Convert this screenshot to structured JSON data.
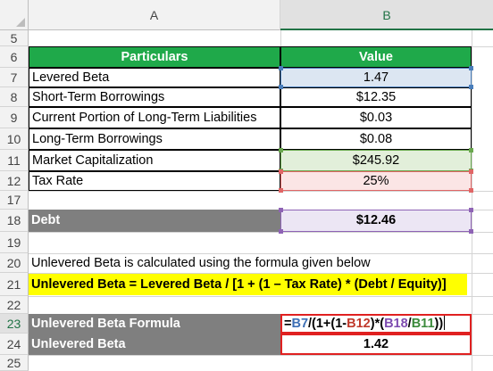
{
  "columns": {
    "a": "A",
    "b": "B"
  },
  "row_numbers": [
    "5",
    "6",
    "7",
    "8",
    "9",
    "10",
    "11",
    "12",
    "17",
    "18",
    "19",
    "20",
    "21",
    "22",
    "23",
    "24",
    "25"
  ],
  "table": {
    "header_particulars": "Particulars",
    "header_value": "Value",
    "rows": [
      {
        "label": "Levered Beta",
        "value": "1.47"
      },
      {
        "label": "Short-Term Borrowings",
        "value": "$12.35"
      },
      {
        "label": "Current Portion of Long-Term Liabilities",
        "value": "$0.03"
      },
      {
        "label": "Long-Term Borrowings",
        "value": "$0.08"
      },
      {
        "label": "Market Capitalization",
        "value": "$245.92"
      },
      {
        "label": "Tax Rate",
        "value": "25%"
      }
    ]
  },
  "debt": {
    "label": "Debt",
    "value": "$12.46"
  },
  "note_text": "Unlevered Beta is calculated using the formula given below",
  "formula_text": "Unlevered Beta = Levered Beta / [1 + (1 – Tax Rate) * (Debt / Equity)]",
  "formula_row": {
    "label": "Unlevered Beta Formula",
    "tokens": [
      "=",
      "B7",
      "/(1+(1-",
      "B12",
      ")*(",
      "B18",
      "/",
      "B11",
      "))"
    ]
  },
  "result_row": {
    "label": "Unlevered Beta",
    "value": "1.42"
  },
  "colors": {
    "header_green": "#1fa94a",
    "gray_band": "#7f7f7f",
    "highlight_yellow": "#ffff00",
    "ref_blue": "#3d6fb5",
    "ref_red": "#c0392b",
    "ref_purple": "#7d4bb0",
    "ref_green": "#3b8a3b"
  }
}
